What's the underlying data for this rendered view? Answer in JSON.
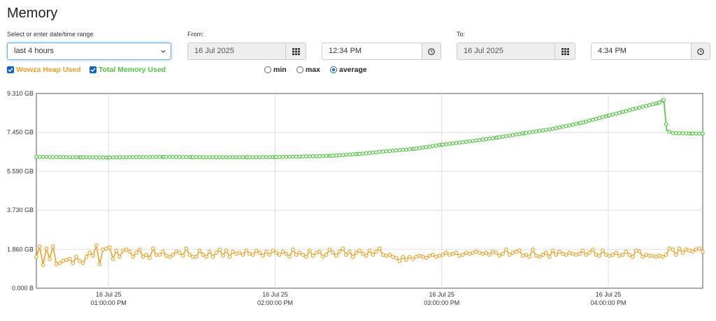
{
  "page": {
    "title": "Memory"
  },
  "controls": {
    "range_label": "Select or enter date/time range",
    "range_value": "last 4 hours",
    "from_label": "From:",
    "from_date": "16 Jul 2025",
    "from_time": "12:34 PM",
    "to_label": "To:",
    "to_date": "16 Jul 2025",
    "to_time": "4:34 PM"
  },
  "legend": {
    "heap": {
      "label": "Wowza Heap Used",
      "color": "#f0a020"
    },
    "total": {
      "label": "Total Memory Used",
      "color": "#4cc63a"
    }
  },
  "modes": [
    {
      "label": "min",
      "selected": false
    },
    {
      "label": "max",
      "selected": false
    },
    {
      "label": "average",
      "selected": true
    }
  ],
  "chart_data": {
    "type": "line",
    "y_unit": "GB",
    "ylim": [
      0,
      9.31
    ],
    "y_ticks": [
      "9.310 GB",
      "7.450 GB",
      "5.590 GB",
      "3.730 GB",
      "1.860 GB",
      "0.000 B"
    ],
    "y_tick_values": [
      9.31,
      7.45,
      5.59,
      3.73,
      1.86,
      0
    ],
    "x_range_minutes": [
      34,
      274
    ],
    "x_ticks": [
      {
        "date": "16 Jul 25",
        "time": "01:00:00 PM",
        "minute": 60
      },
      {
        "date": "16 Jul 25",
        "time": "02:00:00 PM",
        "minute": 120
      },
      {
        "date": "16 Jul 25",
        "time": "03:00:00 PM",
        "minute": 180
      },
      {
        "date": "16 Jul 25",
        "time": "04:00:00 PM",
        "minute": 240
      }
    ],
    "grid": true,
    "series": [
      {
        "name": "Total Memory Used",
        "color": "#4cc63a",
        "points": [
          [
            34,
            6.28
          ],
          [
            50,
            6.26
          ],
          [
            60,
            6.25
          ],
          [
            70,
            6.27
          ],
          [
            80,
            6.28
          ],
          [
            90,
            6.27
          ],
          [
            100,
            6.26
          ],
          [
            110,
            6.26
          ],
          [
            120,
            6.27
          ],
          [
            130,
            6.3
          ],
          [
            140,
            6.33
          ],
          [
            150,
            6.42
          ],
          [
            160,
            6.55
          ],
          [
            170,
            6.66
          ],
          [
            180,
            6.86
          ],
          [
            190,
            7.02
          ],
          [
            200,
            7.2
          ],
          [
            210,
            7.42
          ],
          [
            220,
            7.62
          ],
          [
            230,
            7.9
          ],
          [
            240,
            8.25
          ],
          [
            250,
            8.6
          ],
          [
            258,
            8.86
          ],
          [
            260,
            9.0
          ],
          [
            261,
            7.55
          ],
          [
            263,
            7.42
          ],
          [
            270,
            7.4
          ],
          [
            274,
            7.39
          ]
        ]
      },
      {
        "name": "Wowza Heap Used",
        "color": "#f0a020",
        "points": [
          [
            34,
            1.5
          ],
          [
            35.2,
            2.0
          ],
          [
            36.4,
            1.1
          ],
          [
            37.6,
            1.9
          ],
          [
            38.8,
            1.4
          ],
          [
            40,
            2.0
          ],
          [
            41.2,
            1.15
          ],
          [
            42.4,
            1.2
          ],
          [
            43.6,
            1.3
          ],
          [
            44.8,
            1.35
          ],
          [
            46,
            1.4
          ],
          [
            47.2,
            1.2
          ],
          [
            48.4,
            1.5
          ],
          [
            49.6,
            1.3
          ],
          [
            50.8,
            1.2
          ],
          [
            52,
            1.5
          ],
          [
            53.2,
            1.7
          ],
          [
            54.4,
            1.55
          ],
          [
            55.6,
            2.05
          ],
          [
            56.8,
            1.15
          ],
          [
            58,
            1.85
          ],
          [
            59.2,
            1.9
          ],
          [
            60.4,
            1.95
          ],
          [
            61.6,
            1.4
          ],
          [
            62.8,
            1.8
          ],
          [
            64,
            1.5
          ],
          [
            65.2,
            1.8
          ],
          [
            66.4,
            1.85
          ],
          [
            67.6,
            1.75
          ],
          [
            68.8,
            1.5
          ],
          [
            70,
            1.7
          ],
          [
            71.2,
            1.85
          ],
          [
            72.4,
            1.5
          ],
          [
            73.6,
            1.6
          ],
          [
            74.8,
            1.45
          ],
          [
            76,
            1.9
          ],
          [
            77.2,
            1.6
          ],
          [
            78.4,
            1.6
          ],
          [
            79.6,
            1.75
          ],
          [
            80.8,
            1.55
          ],
          [
            82,
            1.5
          ],
          [
            83.2,
            1.6
          ],
          [
            84.4,
            1.75
          ],
          [
            85.6,
            1.7
          ],
          [
            86.8,
            1.55
          ],
          [
            88,
            1.9
          ],
          [
            89.2,
            1.6
          ],
          [
            90.4,
            1.5
          ],
          [
            91.6,
            1.5
          ],
          [
            92.8,
            1.8
          ],
          [
            94,
            1.6
          ],
          [
            95.2,
            1.5
          ],
          [
            96.4,
            1.75
          ],
          [
            97.6,
            1.5
          ],
          [
            98.8,
            1.7
          ],
          [
            100,
            1.85
          ],
          [
            101.2,
            1.55
          ],
          [
            102.4,
            1.8
          ],
          [
            103.6,
            1.5
          ],
          [
            104.8,
            1.75
          ],
          [
            106,
            1.65
          ],
          [
            107.2,
            1.7
          ],
          [
            108.4,
            1.6
          ],
          [
            109.6,
            1.8
          ],
          [
            110.8,
            1.65
          ],
          [
            112,
            1.6
          ],
          [
            113.2,
            1.8
          ],
          [
            114.4,
            1.7
          ],
          [
            115.6,
            1.55
          ],
          [
            116.8,
            1.75
          ],
          [
            118,
            1.6
          ],
          [
            119.2,
            1.8
          ],
          [
            120.4,
            1.7
          ],
          [
            121.6,
            1.6
          ],
          [
            122.8,
            1.75
          ],
          [
            124,
            1.65
          ],
          [
            125.2,
            1.5
          ],
          [
            126.4,
            1.85
          ],
          [
            127.6,
            1.6
          ],
          [
            128.8,
            1.7
          ],
          [
            130,
            1.6
          ],
          [
            131.2,
            1.5
          ],
          [
            132.4,
            1.8
          ],
          [
            133.6,
            1.55
          ],
          [
            134.8,
            1.7
          ],
          [
            136,
            1.75
          ],
          [
            137.2,
            1.5
          ],
          [
            138.4,
            1.6
          ],
          [
            139.6,
            1.85
          ],
          [
            140.8,
            1.7
          ],
          [
            142,
            1.55
          ],
          [
            143.2,
            1.75
          ],
          [
            144.4,
            1.9
          ],
          [
            145.6,
            1.6
          ],
          [
            146.8,
            1.75
          ],
          [
            148,
            1.5
          ],
          [
            149.2,
            1.7
          ],
          [
            150.4,
            1.8
          ],
          [
            151.6,
            1.65
          ],
          [
            152.8,
            1.55
          ],
          [
            154,
            1.8
          ],
          [
            155.2,
            1.6
          ],
          [
            156.4,
            1.75
          ],
          [
            157.6,
            1.9
          ],
          [
            158.8,
            1.6
          ],
          [
            160,
            1.55
          ],
          [
            161.2,
            1.6
          ],
          [
            162.4,
            1.5
          ],
          [
            163.6,
            1.45
          ],
          [
            164.8,
            1.3
          ],
          [
            166,
            1.5
          ],
          [
            167.2,
            1.35
          ],
          [
            168.4,
            1.5
          ],
          [
            169.6,
            1.4
          ],
          [
            170.8,
            1.5
          ],
          [
            172,
            1.55
          ],
          [
            173.2,
            1.5
          ],
          [
            174.4,
            1.45
          ],
          [
            175.6,
            1.55
          ],
          [
            176.8,
            1.6
          ],
          [
            178,
            1.5
          ],
          [
            179.2,
            1.55
          ],
          [
            180.4,
            1.6
          ],
          [
            181.6,
            1.7
          ],
          [
            182.8,
            1.6
          ],
          [
            184,
            1.65
          ],
          [
            185.2,
            1.7
          ],
          [
            186.4,
            1.55
          ],
          [
            187.6,
            1.6
          ],
          [
            188.8,
            1.7
          ],
          [
            190,
            1.65
          ],
          [
            191.2,
            1.7
          ],
          [
            192.4,
            1.75
          ],
          [
            193.6,
            1.7
          ],
          [
            194.8,
            1.65
          ],
          [
            196,
            1.7
          ],
          [
            197.2,
            1.6
          ],
          [
            198.4,
            1.75
          ],
          [
            199.6,
            1.7
          ],
          [
            200.8,
            1.55
          ],
          [
            202,
            1.65
          ],
          [
            203.2,
            1.85
          ],
          [
            204.4,
            1.6
          ],
          [
            205.6,
            1.7
          ],
          [
            206.8,
            1.75
          ],
          [
            208,
            1.8
          ],
          [
            209.2,
            1.55
          ],
          [
            210.4,
            1.6
          ],
          [
            211.6,
            1.5
          ],
          [
            212.8,
            1.85
          ],
          [
            214,
            1.55
          ],
          [
            215.2,
            1.5
          ],
          [
            216.4,
            1.6
          ],
          [
            217.6,
            1.7
          ],
          [
            218.8,
            1.5
          ],
          [
            220,
            1.8
          ],
          [
            221.2,
            1.6
          ],
          [
            222.4,
            1.75
          ],
          [
            223.6,
            1.65
          ],
          [
            224.8,
            1.6
          ],
          [
            226,
            1.7
          ],
          [
            227.2,
            1.65
          ],
          [
            228.4,
            1.6
          ],
          [
            229.6,
            1.65
          ],
          [
            230.8,
            1.8
          ],
          [
            232,
            1.6
          ],
          [
            233.2,
            1.7
          ],
          [
            234.4,
            1.85
          ],
          [
            235.6,
            1.6
          ],
          [
            236.8,
            1.55
          ],
          [
            238,
            1.8
          ],
          [
            239.2,
            1.6
          ],
          [
            240.4,
            1.55
          ],
          [
            241.6,
            1.6
          ],
          [
            242.8,
            1.7
          ],
          [
            244,
            1.55
          ],
          [
            245.2,
            1.6
          ],
          [
            246.4,
            1.75
          ],
          [
            247.6,
            1.6
          ],
          [
            248.8,
            1.5
          ],
          [
            250,
            1.8
          ],
          [
            251.2,
            1.75
          ],
          [
            252.4,
            1.5
          ],
          [
            253.6,
            1.6
          ],
          [
            254.8,
            1.55
          ],
          [
            256,
            1.55
          ],
          [
            257.2,
            1.5
          ],
          [
            258.4,
            1.55
          ],
          [
            259.6,
            1.5
          ],
          [
            260.8,
            1.6
          ],
          [
            262,
            1.9
          ],
          [
            263.2,
            1.85
          ],
          [
            264.4,
            1.6
          ],
          [
            265.6,
            1.9
          ],
          [
            266.8,
            1.7
          ],
          [
            268,
            1.85
          ],
          [
            269.2,
            1.8
          ],
          [
            270.4,
            1.75
          ],
          [
            271.6,
            1.85
          ],
          [
            272.8,
            1.9
          ],
          [
            274,
            1.75
          ]
        ]
      }
    ]
  }
}
